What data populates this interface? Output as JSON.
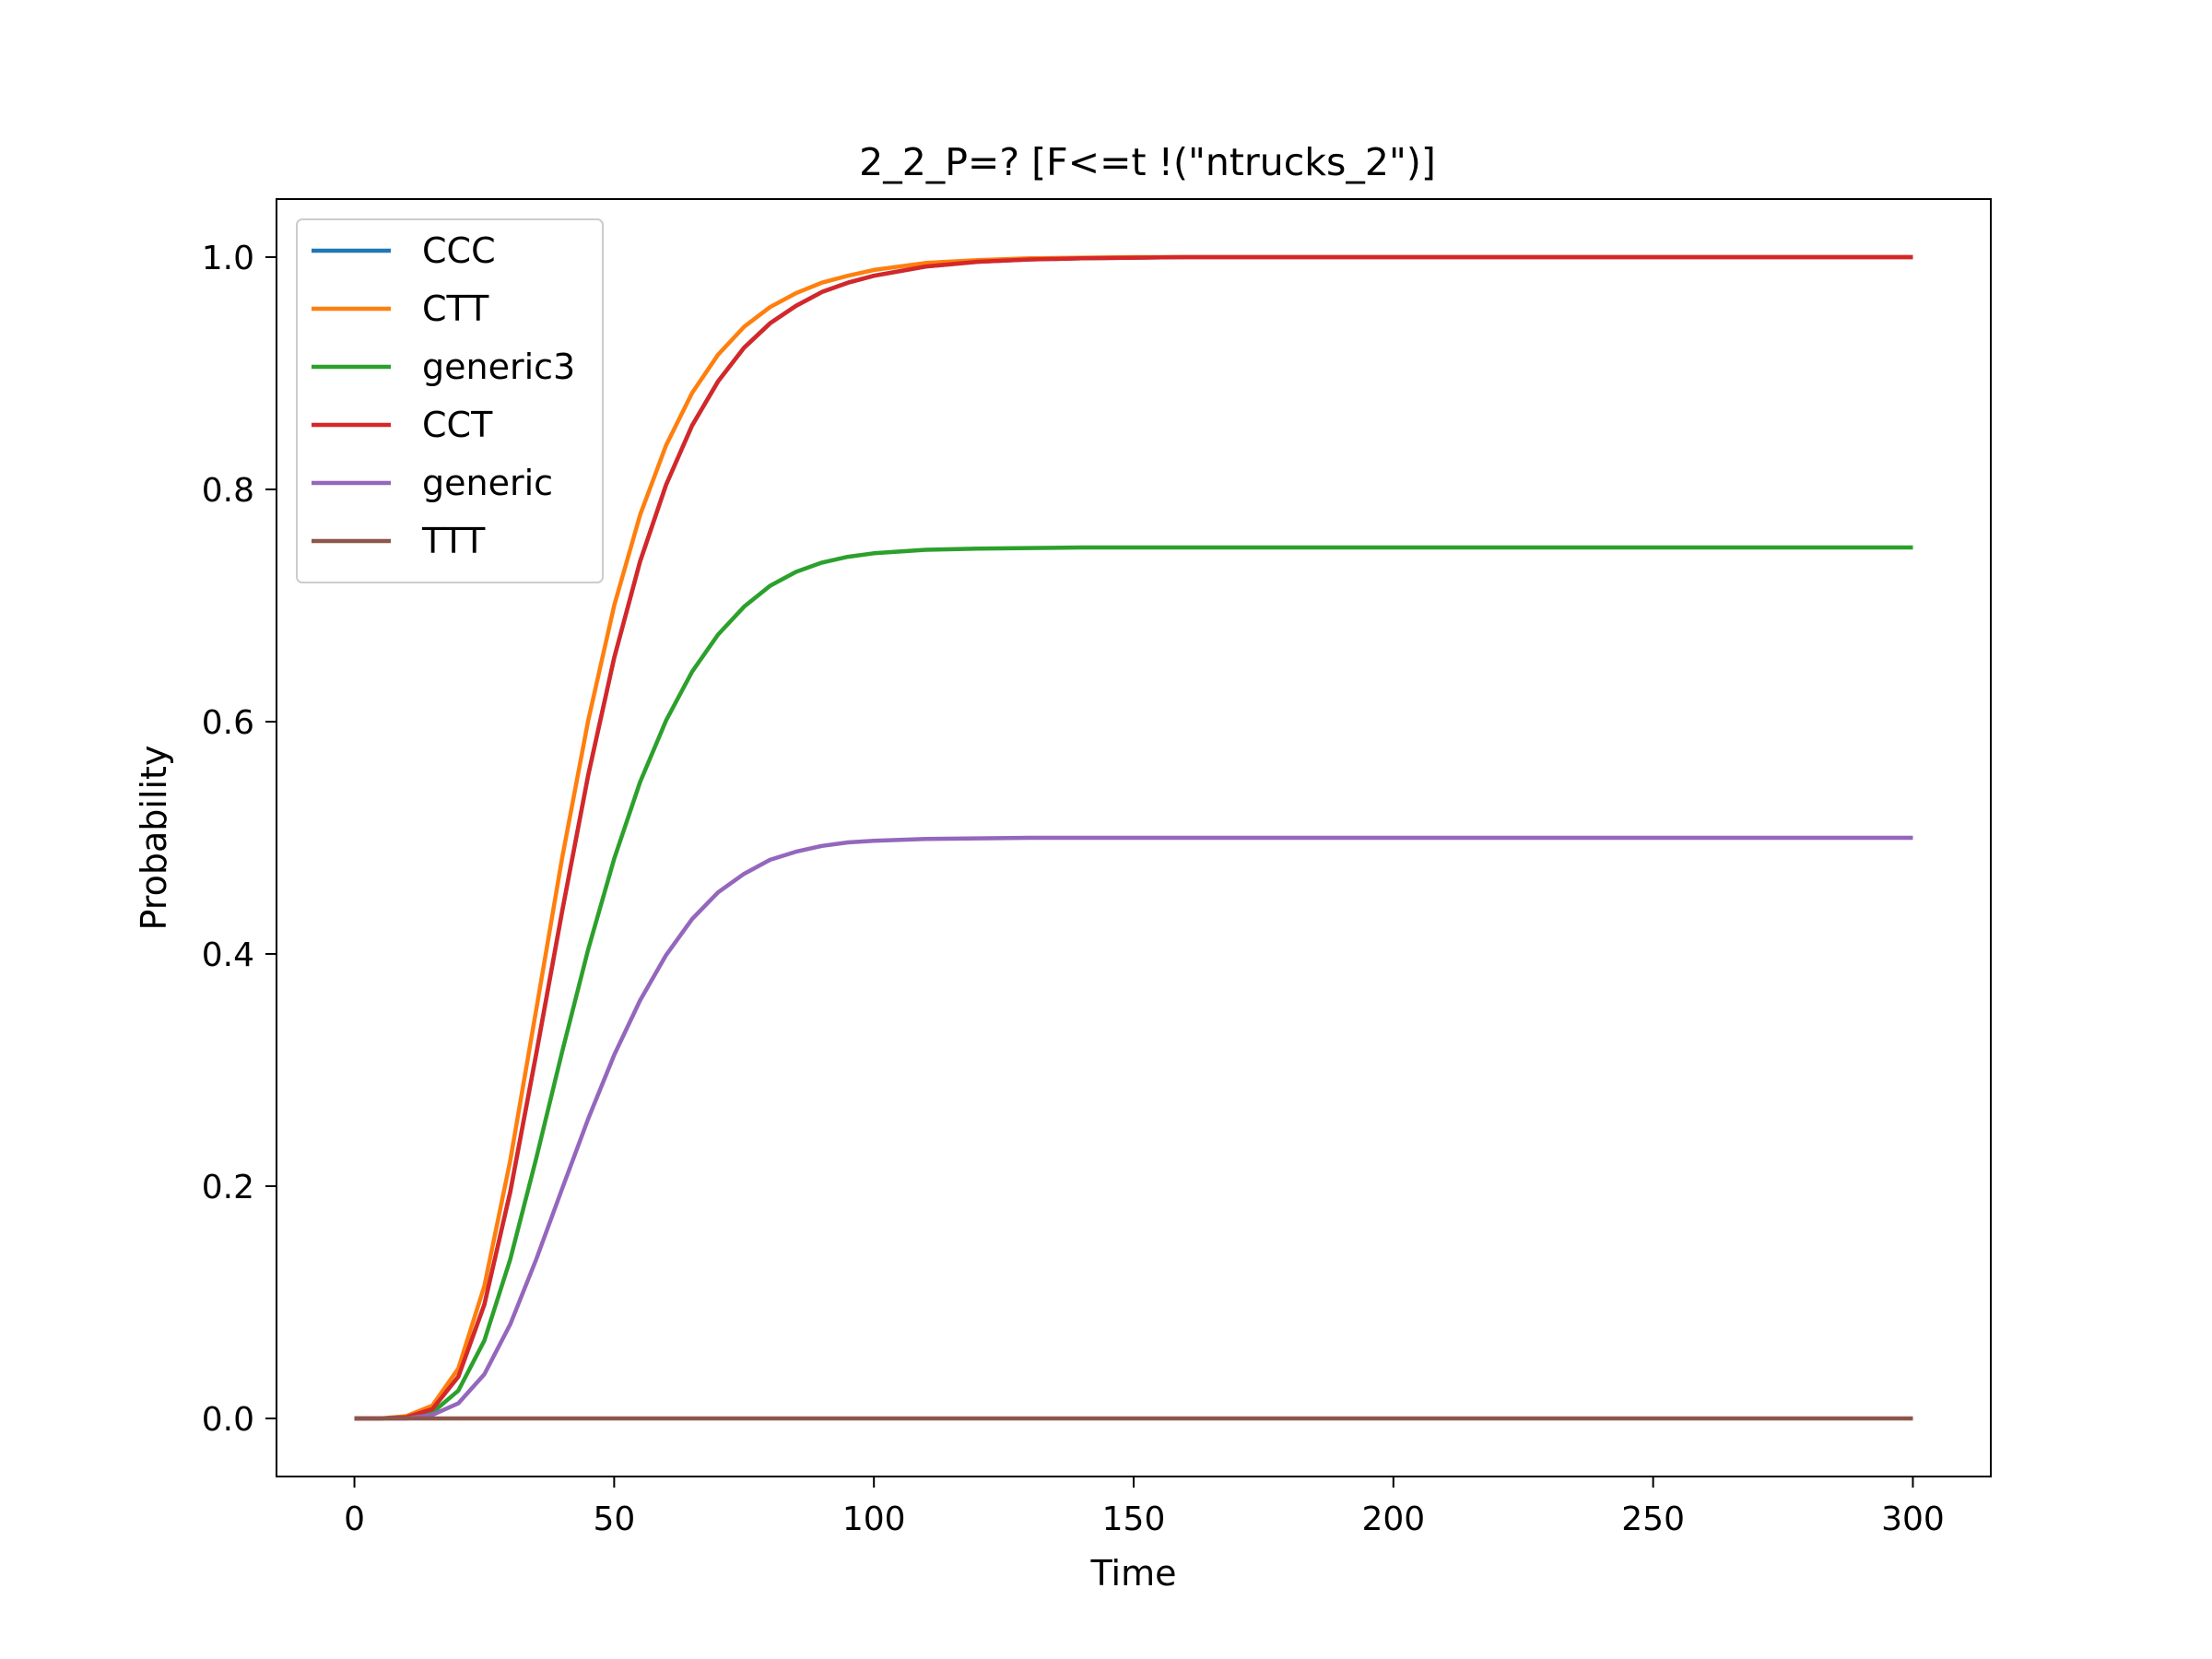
{
  "chart_data": {
    "type": "line",
    "title": "2_2_P=? [F<=t !(\"ntrucks_2\")]",
    "xlabel": "Time",
    "ylabel": "Probability",
    "xlim": [
      -15,
      315
    ],
    "ylim": [
      -0.05,
      1.05
    ],
    "xticks": [
      0,
      50,
      100,
      150,
      200,
      250,
      300
    ],
    "yticks": [
      0.0,
      0.2,
      0.4,
      0.6,
      0.8,
      1.0
    ],
    "xtick_labels": [
      "0",
      "50",
      "100",
      "150",
      "200",
      "250",
      "300"
    ],
    "ytick_labels": [
      "0.0",
      "0.2",
      "0.4",
      "0.6",
      "0.8",
      "1.0"
    ],
    "grid": false,
    "legend_position": "top-left",
    "x": [
      0,
      5,
      10,
      15,
      20,
      25,
      30,
      35,
      40,
      45,
      50,
      55,
      60,
      65,
      70,
      75,
      80,
      85,
      90,
      95,
      100,
      110,
      120,
      130,
      140,
      150,
      160,
      170,
      180,
      190,
      200,
      225,
      250,
      275,
      300
    ],
    "series": [
      {
        "name": "CCC",
        "color": "#1f77b4",
        "values": [
          0,
          0,
          0.001,
          0.008,
          0.036,
          0.098,
          0.195,
          0.314,
          0.437,
          0.554,
          0.655,
          0.738,
          0.804,
          0.855,
          0.893,
          0.922,
          0.943,
          0.958,
          0.97,
          0.978,
          0.984,
          0.992,
          0.996,
          0.998,
          0.999,
          0.9995,
          1.0,
          1.0,
          1.0,
          1.0,
          1.0,
          1.0,
          1.0,
          1.0,
          1.0
        ]
      },
      {
        "name": "CTT",
        "color": "#ff7f0e",
        "values": [
          0,
          0,
          0.002,
          0.011,
          0.043,
          0.114,
          0.222,
          0.352,
          0.483,
          0.601,
          0.7,
          0.778,
          0.838,
          0.883,
          0.916,
          0.94,
          0.957,
          0.969,
          0.978,
          0.984,
          0.989,
          0.995,
          0.9975,
          0.999,
          0.9995,
          1.0,
          1.0,
          1.0,
          1.0,
          1.0,
          1.0,
          1.0,
          1.0,
          1.0,
          1.0
        ]
      },
      {
        "name": "generic3",
        "color": "#2ca02c",
        "values": [
          0,
          0,
          0.001,
          0.005,
          0.024,
          0.067,
          0.137,
          0.224,
          0.316,
          0.404,
          0.482,
          0.548,
          0.601,
          0.643,
          0.675,
          0.699,
          0.717,
          0.729,
          0.737,
          0.742,
          0.745,
          0.748,
          0.749,
          0.7495,
          0.75,
          0.75,
          0.75,
          0.75,
          0.75,
          0.75,
          0.75,
          0.75,
          0.75,
          0.75,
          0.75
        ]
      },
      {
        "name": "CCT",
        "color": "#d62728",
        "values": [
          0,
          0,
          0.001,
          0.008,
          0.036,
          0.098,
          0.195,
          0.314,
          0.437,
          0.554,
          0.655,
          0.738,
          0.804,
          0.855,
          0.893,
          0.922,
          0.943,
          0.958,
          0.97,
          0.978,
          0.984,
          0.992,
          0.996,
          0.998,
          0.999,
          0.9995,
          1.0,
          1.0,
          1.0,
          1.0,
          1.0,
          1.0,
          1.0,
          1.0,
          1.0
        ]
      },
      {
        "name": "generic",
        "color": "#9467bd",
        "values": [
          0,
          0,
          0,
          0.003,
          0.013,
          0.038,
          0.081,
          0.137,
          0.198,
          0.258,
          0.313,
          0.36,
          0.399,
          0.43,
          0.453,
          0.469,
          0.481,
          0.488,
          0.493,
          0.496,
          0.4975,
          0.499,
          0.4995,
          0.5,
          0.5,
          0.5,
          0.5,
          0.5,
          0.5,
          0.5,
          0.5,
          0.5,
          0.5,
          0.5,
          0.5
        ]
      },
      {
        "name": "TTT",
        "color": "#8c564b",
        "values": [
          0,
          0,
          0,
          0,
          0,
          0,
          0,
          0,
          0,
          0,
          0,
          0,
          0,
          0,
          0,
          0,
          0,
          0,
          0,
          0,
          0,
          0,
          0,
          0,
          0,
          0,
          0,
          0,
          0,
          0,
          0,
          0,
          0,
          0,
          0
        ]
      }
    ]
  }
}
